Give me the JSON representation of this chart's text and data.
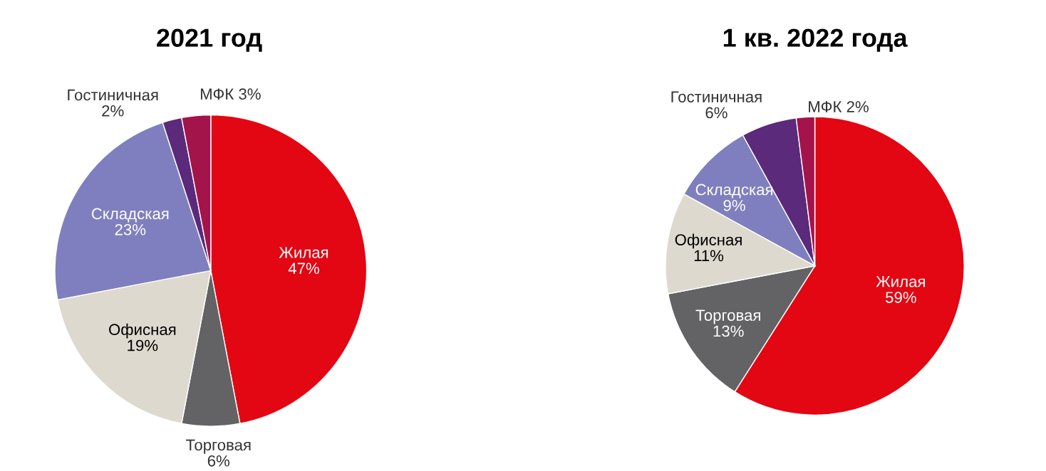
{
  "chart_data": [
    {
      "type": "pie",
      "title": "2021 год",
      "categories": [
        "Жилая",
        "Торговая",
        "Офисная",
        "Складская",
        "Гостиничная",
        "МФК"
      ],
      "values": [
        47,
        6,
        19,
        23,
        2,
        3
      ],
      "value_labels": [
        "47%",
        "6%",
        "19%",
        "23%",
        "2%",
        "3%"
      ],
      "colors": [
        "#e30613",
        "#636366",
        "#ddd9cf",
        "#7f7fbf",
        "#5b2a7a",
        "#a3144a"
      ]
    },
    {
      "type": "pie",
      "title": "1 кв. 2022 года",
      "categories": [
        "Жилая",
        "Торговая",
        "Офисная",
        "Складская",
        "Гостиничная",
        "МФК"
      ],
      "values": [
        59,
        13,
        11,
        9,
        6,
        2
      ],
      "value_labels": [
        "59%",
        "13%",
        "11%",
        "9%",
        "6%",
        "2%"
      ],
      "colors": [
        "#e30613",
        "#636366",
        "#ddd9cf",
        "#7f7fbf",
        "#5b2a7a",
        "#a3144a"
      ]
    }
  ]
}
